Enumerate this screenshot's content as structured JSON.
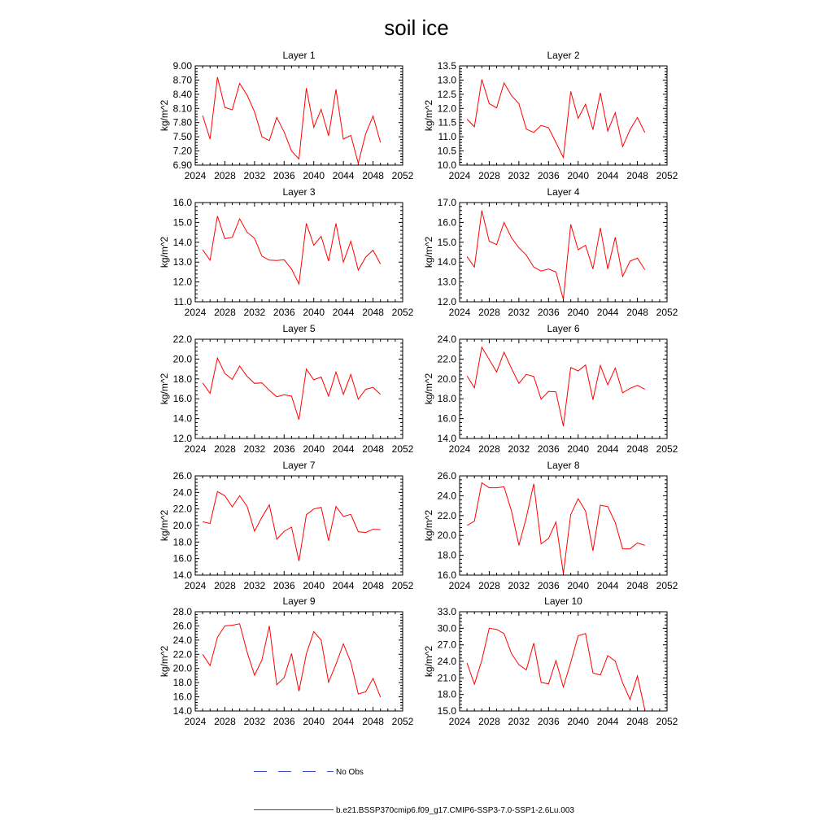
{
  "figure": {
    "title": "soil ice",
    "colors": {
      "series": "#ff0000",
      "no_obs": "#3b4cc0",
      "axis": "#000000"
    }
  },
  "legend": {
    "no_obs_label": "No Obs",
    "model_label": "b.e21.BSSP370cmip6.f09_g17.CMIP6-SSP3-7.0-SSP1-2.6Lu.003"
  },
  "chart_data": [
    {
      "type": "line",
      "title": "Layer 1",
      "ylabel": "kg/m^2",
      "xlim": [
        2024,
        2052
      ],
      "ylim": [
        6.9,
        9.0
      ],
      "xticks": [
        "2024",
        "2028",
        "2032",
        "2036",
        "2040",
        "2044",
        "2048",
        "2052"
      ],
      "yticks": [
        "6.90",
        "7.20",
        "7.50",
        "7.80",
        "8.10",
        "8.40",
        "8.70",
        "9.00"
      ],
      "x": [
        2025,
        2026,
        2027,
        2028,
        2029,
        2030,
        2031,
        2032,
        2033,
        2034,
        2035,
        2036,
        2037,
        2038,
        2039,
        2040,
        2041,
        2042,
        2043,
        2044,
        2045,
        2046,
        2047,
        2048,
        2049
      ],
      "values": [
        7.95,
        7.45,
        8.76,
        8.12,
        8.07,
        8.63,
        8.38,
        8.03,
        7.5,
        7.42,
        7.91,
        7.6,
        7.2,
        7.03,
        8.53,
        7.7,
        8.08,
        7.52,
        8.5,
        7.45,
        7.53,
        6.94,
        7.56,
        7.94,
        7.38
      ]
    },
    {
      "type": "line",
      "title": "Layer 2",
      "ylabel": "kg/m^2",
      "xlim": [
        2024,
        2052
      ],
      "ylim": [
        10.0,
        13.5
      ],
      "xticks": [
        "2024",
        "2028",
        "2032",
        "2036",
        "2040",
        "2044",
        "2048",
        "2052"
      ],
      "yticks": [
        "10.0",
        "10.5",
        "11.0",
        "11.5",
        "12.0",
        "12.5",
        "13.0",
        "13.5"
      ],
      "x": [
        2025,
        2026,
        2027,
        2028,
        2029,
        2030,
        2031,
        2032,
        2033,
        2034,
        2035,
        2036,
        2037,
        2038,
        2039,
        2040,
        2041,
        2042,
        2043,
        2044,
        2045,
        2046,
        2047,
        2048,
        2049
      ],
      "values": [
        11.62,
        11.35,
        13.02,
        12.17,
        12.02,
        12.9,
        12.45,
        12.17,
        11.27,
        11.15,
        11.4,
        11.32,
        10.8,
        10.27,
        12.6,
        11.65,
        12.15,
        11.25,
        12.55,
        11.2,
        11.85,
        10.65,
        11.25,
        11.68,
        11.15
      ]
    },
    {
      "type": "line",
      "title": "Layer 3",
      "ylabel": "kg/m^2",
      "xlim": [
        2024,
        2052
      ],
      "ylim": [
        11.0,
        16.0
      ],
      "xticks": [
        "2024",
        "2028",
        "2032",
        "2036",
        "2040",
        "2044",
        "2048",
        "2052"
      ],
      "yticks": [
        "11.0",
        "12.0",
        "13.0",
        "14.0",
        "15.0",
        "16.0"
      ],
      "x": [
        2025,
        2026,
        2027,
        2028,
        2029,
        2030,
        2031,
        2032,
        2033,
        2034,
        2035,
        2036,
        2037,
        2038,
        2039,
        2040,
        2041,
        2042,
        2043,
        2044,
        2045,
        2046,
        2047,
        2048,
        2049
      ],
      "values": [
        13.62,
        13.1,
        15.32,
        14.18,
        14.25,
        15.18,
        14.5,
        14.2,
        13.3,
        13.1,
        13.08,
        13.12,
        12.65,
        11.9,
        14.95,
        13.85,
        14.3,
        13.05,
        14.95,
        13.0,
        14.05,
        12.6,
        13.25,
        13.6,
        12.9
      ]
    },
    {
      "type": "line",
      "title": "Layer 4",
      "ylabel": "kg/m^2",
      "xlim": [
        2024,
        2052
      ],
      "ylim": [
        12.0,
        17.0
      ],
      "xticks": [
        "2024",
        "2028",
        "2032",
        "2036",
        "2040",
        "2044",
        "2048",
        "2052"
      ],
      "yticks": [
        "12.0",
        "13.0",
        "14.0",
        "15.0",
        "16.0",
        "17.0"
      ],
      "x": [
        2025,
        2026,
        2027,
        2028,
        2029,
        2030,
        2031,
        2032,
        2033,
        2034,
        2035,
        2036,
        2037,
        2038,
        2039,
        2040,
        2041,
        2042,
        2043,
        2044,
        2045,
        2046,
        2047,
        2048,
        2049
      ],
      "values": [
        14.28,
        13.75,
        16.6,
        15.05,
        14.88,
        16.0,
        15.22,
        14.72,
        14.35,
        13.75,
        13.55,
        13.65,
        13.5,
        12.12,
        15.9,
        14.62,
        14.85,
        13.65,
        15.72,
        13.65,
        15.25,
        13.28,
        14.05,
        14.2,
        13.62
      ]
    },
    {
      "type": "line",
      "title": "Layer 5",
      "ylabel": "kg/m^2",
      "xlim": [
        2024,
        2052
      ],
      "ylim": [
        12.0,
        22.0
      ],
      "xticks": [
        "2024",
        "2028",
        "2032",
        "2036",
        "2040",
        "2044",
        "2048",
        "2052"
      ],
      "yticks": [
        "12.0",
        "14.0",
        "16.0",
        "18.0",
        "20.0",
        "22.0"
      ],
      "x": [
        2025,
        2026,
        2027,
        2028,
        2029,
        2030,
        2031,
        2032,
        2033,
        2034,
        2035,
        2036,
        2037,
        2038,
        2039,
        2040,
        2041,
        2042,
        2043,
        2044,
        2045,
        2046,
        2047,
        2048,
        2049
      ],
      "values": [
        17.6,
        16.55,
        20.1,
        18.55,
        17.95,
        19.3,
        18.25,
        17.55,
        17.6,
        16.85,
        16.2,
        16.4,
        16.25,
        13.9,
        19.0,
        17.9,
        18.2,
        16.25,
        18.7,
        16.45,
        18.45,
        15.95,
        16.95,
        17.15,
        16.45
      ]
    },
    {
      "type": "line",
      "title": "Layer 6",
      "ylabel": "kg/m^2",
      "xlim": [
        2024,
        2052
      ],
      "ylim": [
        14.0,
        24.0
      ],
      "xticks": [
        "2024",
        "2028",
        "2032",
        "2036",
        "2040",
        "2044",
        "2048",
        "2052"
      ],
      "yticks": [
        "14.0",
        "16.0",
        "18.0",
        "20.0",
        "22.0",
        "24.0"
      ],
      "x": [
        2025,
        2026,
        2027,
        2028,
        2029,
        2030,
        2031,
        2032,
        2033,
        2034,
        2035,
        2036,
        2037,
        2038,
        2039,
        2040,
        2041,
        2042,
        2043,
        2044,
        2045,
        2046,
        2047,
        2048,
        2049
      ],
      "values": [
        20.3,
        19.1,
        23.2,
        21.95,
        20.7,
        22.7,
        21.05,
        19.55,
        20.45,
        20.25,
        17.95,
        18.75,
        18.7,
        15.25,
        21.15,
        20.8,
        21.4,
        17.9,
        21.35,
        19.4,
        21.1,
        18.6,
        19.05,
        19.35,
        18.95
      ]
    },
    {
      "type": "line",
      "title": "Layer 7",
      "ylabel": "kg/m^2",
      "xlim": [
        2024,
        2052
      ],
      "ylim": [
        14.0,
        26.0
      ],
      "xticks": [
        "2024",
        "2028",
        "2032",
        "2036",
        "2040",
        "2044",
        "2048",
        "2052"
      ],
      "yticks": [
        "14.0",
        "16.0",
        "18.0",
        "20.0",
        "22.0",
        "24.0",
        "26.0"
      ],
      "x": [
        2025,
        2026,
        2027,
        2028,
        2029,
        2030,
        2031,
        2032,
        2033,
        2034,
        2035,
        2036,
        2037,
        2038,
        2039,
        2040,
        2041,
        2042,
        2043,
        2044,
        2045,
        2046,
        2047,
        2048,
        2049
      ],
      "values": [
        20.45,
        20.25,
        24.1,
        23.6,
        22.25,
        23.6,
        22.3,
        19.3,
        21.0,
        22.5,
        18.35,
        19.3,
        19.8,
        15.7,
        21.3,
        22.0,
        22.2,
        18.15,
        22.3,
        21.1,
        21.35,
        19.25,
        19.15,
        19.55,
        19.5
      ]
    },
    {
      "type": "line",
      "title": "Layer 8",
      "ylabel": "kg/m^2",
      "xlim": [
        2024,
        2052
      ],
      "ylim": [
        16.0,
        26.0
      ],
      "xticks": [
        "2024",
        "2028",
        "2032",
        "2036",
        "2040",
        "2044",
        "2048",
        "2052"
      ],
      "yticks": [
        "16.0",
        "18.0",
        "20.0",
        "22.0",
        "24.0",
        "26.0"
      ],
      "x": [
        2025,
        2026,
        2027,
        2028,
        2029,
        2030,
        2031,
        2032,
        2033,
        2034,
        2035,
        2036,
        2037,
        2038,
        2039,
        2040,
        2041,
        2042,
        2043,
        2044,
        2045,
        2046,
        2047,
        2048,
        2049
      ],
      "values": [
        21.0,
        21.45,
        25.3,
        24.8,
        24.8,
        24.9,
        22.45,
        19.0,
        21.8,
        25.2,
        19.15,
        19.7,
        21.35,
        16.15,
        22.1,
        23.7,
        22.45,
        18.45,
        23.05,
        22.9,
        21.3,
        18.65,
        18.65,
        19.25,
        19.0
      ]
    },
    {
      "type": "line",
      "title": "Layer 9",
      "ylabel": "kg/m^2",
      "xlim": [
        2024,
        2052
      ],
      "ylim": [
        14.0,
        28.0
      ],
      "xticks": [
        "2024",
        "2028",
        "2032",
        "2036",
        "2040",
        "2044",
        "2048",
        "2052"
      ],
      "yticks": [
        "14.0",
        "16.0",
        "18.0",
        "20.0",
        "22.0",
        "24.0",
        "26.0",
        "28.0"
      ],
      "x": [
        2025,
        2026,
        2027,
        2028,
        2029,
        2030,
        2031,
        2032,
        2033,
        2034,
        2035,
        2036,
        2037,
        2038,
        2039,
        2040,
        2041,
        2042,
        2043,
        2044,
        2045,
        2046,
        2047,
        2048,
        2049
      ],
      "values": [
        22.0,
        20.4,
        24.4,
        26.0,
        26.1,
        26.3,
        22.3,
        19.05,
        21.2,
        26.0,
        17.7,
        18.7,
        22.1,
        16.8,
        22.05,
        25.2,
        24.0,
        18.05,
        20.6,
        23.45,
        20.85,
        16.4,
        16.7,
        18.6,
        15.95
      ]
    },
    {
      "type": "line",
      "title": "Layer 10",
      "ylabel": "kg/m^2",
      "xlim": [
        2024,
        2052
      ],
      "ylim": [
        15.0,
        33.0
      ],
      "xticks": [
        "2024",
        "2028",
        "2032",
        "2036",
        "2040",
        "2044",
        "2048",
        "2052"
      ],
      "yticks": [
        "15.0",
        "18.0",
        "21.0",
        "24.0",
        "27.0",
        "30.0",
        "33.0"
      ],
      "x": [
        2025,
        2026,
        2027,
        2028,
        2029,
        2030,
        2031,
        2032,
        2033,
        2034,
        2035,
        2036,
        2037,
        2038,
        2039,
        2040,
        2041,
        2042,
        2043,
        2044,
        2045,
        2046,
        2047,
        2048,
        2049
      ],
      "values": [
        23.7,
        19.85,
        24.2,
        30.0,
        29.8,
        29.05,
        25.4,
        23.4,
        22.45,
        27.3,
        20.2,
        19.9,
        24.15,
        19.35,
        23.8,
        28.65,
        29.05,
        21.9,
        21.5,
        25.05,
        24.05,
        20.1,
        17.1,
        21.35,
        15.2
      ]
    }
  ]
}
